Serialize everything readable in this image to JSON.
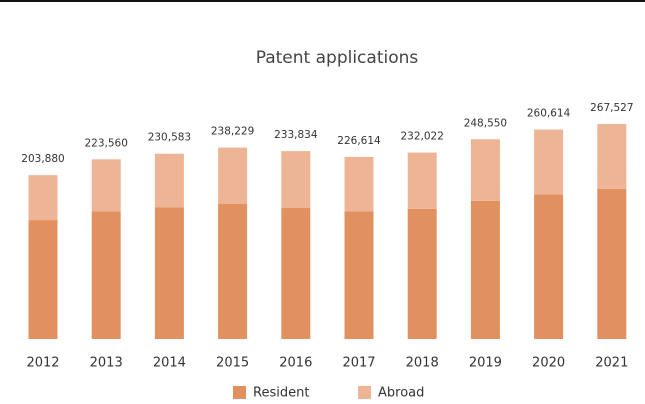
{
  "chart_data": {
    "type": "stacked_bar",
    "title": "Patent applications",
    "categories": [
      "2012",
      "2013",
      "2014",
      "2015",
      "2016",
      "2017",
      "2018",
      "2019",
      "2020",
      "2021"
    ],
    "series": [
      {
        "name": "Resident",
        "color": "#e0915f",
        "values": [
          148000,
          159000,
          164000,
          168000,
          163000,
          159000,
          162000,
          172000,
          180000,
          187000
        ]
      },
      {
        "name": "Abroad",
        "color": "#eeb496",
        "values": [
          55880,
          64560,
          66583,
          70229,
          70834,
          67614,
          70022,
          76550,
          80614,
          80527
        ]
      }
    ],
    "totals": [
      203880,
      223560,
      230583,
      238229,
      233834,
      226614,
      232022,
      248550,
      260614,
      267527
    ],
    "total_labels": [
      "203,880",
      "223,560",
      "230,583",
      "238,229",
      "233,834",
      "226,614",
      "232,022",
      "248,550",
      "260,614",
      "267,527"
    ],
    "ylim": [
      0,
      280000
    ],
    "legend": "bottom"
  }
}
